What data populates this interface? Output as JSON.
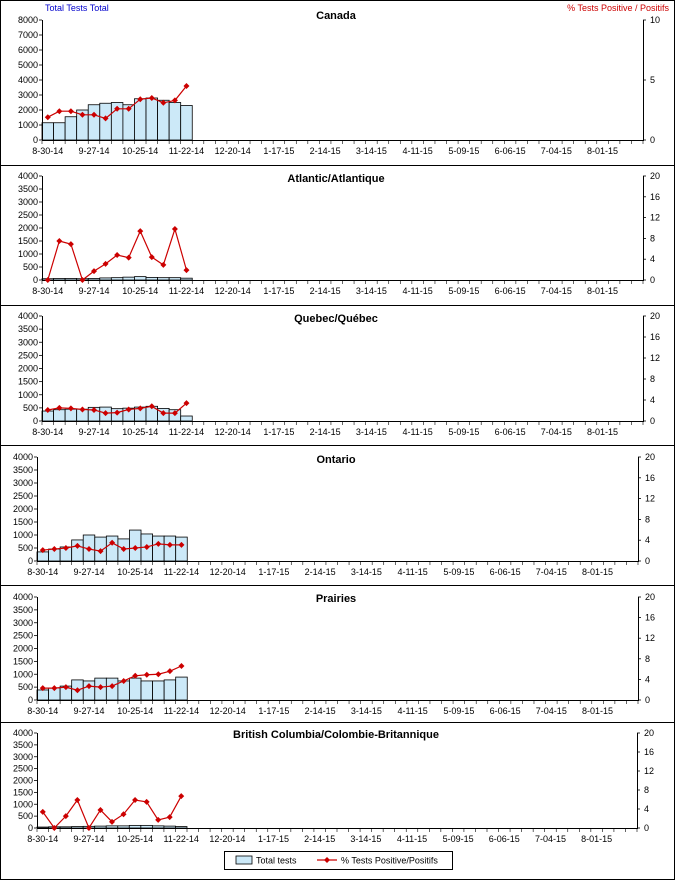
{
  "header": {
    "left_axis_title": "Total Tests Total",
    "right_axis_title": "% Tests Positive / Positifs"
  },
  "legend": {
    "position": "bottom-center",
    "entries": [
      {
        "label": "Total tests",
        "marker": "bar"
      },
      {
        "label": "% Tests Positive/Positifs",
        "marker": "line-diamond"
      }
    ]
  },
  "colors": {
    "bar_fill": "#cce9f8",
    "bar_stroke": "#000000",
    "line": "#cc0000",
    "left_axis_title": "#0000cc",
    "right_axis_title": "#cc0000"
  },
  "chart_data": [
    {
      "type": "bar+line",
      "title": "Canada",
      "grid": false,
      "xlim": [
        "8-30-14",
        "8-22-15"
      ],
      "x_tick_labels": [
        "8-30-14",
        "9-27-14",
        "10-25-14",
        "11-22-14",
        "12-20-14",
        "1-17-15",
        "2-14-15",
        "3-14-15",
        "4-11-15",
        "5-09-15",
        "6-06-15",
        "7-04-15",
        "8-01-15"
      ],
      "x": [
        "8-30-14",
        "9-06-14",
        "9-13-14",
        "9-20-14",
        "9-27-14",
        "10-04-14",
        "10-11-14",
        "10-18-14",
        "10-25-14",
        "11-01-14",
        "11-08-14",
        "11-15-14",
        "11-22-14"
      ],
      "y_left": {
        "ylim": [
          0,
          8000
        ],
        "ticks": [
          0,
          1000,
          2000,
          3000,
          4000,
          5000,
          6000,
          7000,
          8000
        ]
      },
      "y_right": {
        "ylim": [
          0,
          10
        ],
        "ticks": [
          0,
          5,
          10
        ]
      },
      "series": [
        {
          "name": "Total tests",
          "type": "bar",
          "axis": "left",
          "values": [
            1150,
            1150,
            1550,
            2000,
            2350,
            2450,
            2500,
            2350,
            2750,
            2800,
            2650,
            2500,
            2300
          ]
        },
        {
          "name": "% Tests Positive/Positifs",
          "type": "line",
          "axis": "right",
          "values": [
            1.9,
            2.4,
            2.4,
            2.1,
            2.1,
            1.8,
            2.6,
            2.6,
            3.4,
            3.5,
            3.1,
            3.3,
            4.5
          ]
        }
      ]
    },
    {
      "type": "bar+line",
      "title": "Atlantic/Atlantique",
      "grid": false,
      "xlim": [
        "8-30-14",
        "8-22-15"
      ],
      "x_tick_labels": [
        "8-30-14",
        "9-27-14",
        "10-25-14",
        "11-22-14",
        "12-20-14",
        "1-17-15",
        "2-14-15",
        "3-14-15",
        "4-11-15",
        "5-09-15",
        "6-06-15",
        "7-04-15",
        "8-01-15"
      ],
      "x": [
        "8-30-14",
        "9-06-14",
        "9-13-14",
        "9-20-14",
        "9-27-14",
        "10-04-14",
        "10-11-14",
        "10-18-14",
        "10-25-14",
        "11-01-14",
        "11-08-14",
        "11-15-14",
        "11-22-14"
      ],
      "y_left": {
        "ylim": [
          0,
          4000
        ],
        "ticks": [
          0,
          500,
          1000,
          1500,
          2000,
          2500,
          3000,
          3500,
          4000
        ]
      },
      "y_right": {
        "ylim": [
          0,
          20
        ],
        "ticks": [
          0,
          4,
          8,
          12,
          16,
          20
        ]
      },
      "series": [
        {
          "name": "Total tests",
          "type": "bar",
          "axis": "left",
          "values": [
            50,
            60,
            60,
            50,
            60,
            80,
            90,
            110,
            130,
            100,
            90,
            90,
            70
          ]
        },
        {
          "name": "% Tests Positive/Positifs",
          "type": "line",
          "axis": "right",
          "values": [
            0,
            7.5,
            6.9,
            0,
            1.7,
            3.1,
            4.8,
            4.3,
            9.4,
            4.4,
            2.9,
            9.8,
            1.9
          ]
        }
      ]
    },
    {
      "type": "bar+line",
      "title": "Quebec/Québec",
      "grid": false,
      "xlim": [
        "8-30-14",
        "8-22-15"
      ],
      "x_tick_labels": [
        "8-30-14",
        "9-27-14",
        "10-25-14",
        "11-22-14",
        "12-20-14",
        "1-17-15",
        "2-14-15",
        "3-14-15",
        "4-11-15",
        "5-09-15",
        "6-06-15",
        "7-04-15",
        "8-01-15"
      ],
      "x": [
        "8-30-14",
        "9-06-14",
        "9-13-14",
        "9-20-14",
        "9-27-14",
        "10-04-14",
        "10-11-14",
        "10-18-14",
        "10-25-14",
        "11-01-14",
        "11-08-14",
        "11-15-14",
        "11-22-14"
      ],
      "y_left": {
        "ylim": [
          0,
          4000
        ],
        "ticks": [
          0,
          500,
          1000,
          1500,
          2000,
          2500,
          3000,
          3500,
          4000
        ]
      },
      "y_right": {
        "ylim": [
          0,
          20
        ],
        "ticks": [
          0,
          4,
          8,
          12,
          16,
          20
        ]
      },
      "series": [
        {
          "name": "Total tests",
          "type": "bar",
          "axis": "left",
          "values": [
            380,
            430,
            450,
            450,
            520,
            530,
            470,
            490,
            530,
            560,
            480,
            430,
            190
          ]
        },
        {
          "name": "% Tests Positive/Positifs",
          "type": "line",
          "axis": "right",
          "values": [
            2.1,
            2.5,
            2.4,
            2.2,
            2.1,
            1.5,
            1.6,
            2.2,
            2.4,
            2.8,
            1.5,
            1.5,
            3.4
          ]
        }
      ]
    },
    {
      "type": "bar+line",
      "title": "Ontario",
      "grid": false,
      "xlim": [
        "8-30-14",
        "8-22-15"
      ],
      "x_tick_labels": [
        "8-30-14",
        "9-27-14",
        "10-25-14",
        "11-22-14",
        "12-20-14",
        "1-17-15",
        "2-14-15",
        "3-14-15",
        "4-11-15",
        "5-09-15",
        "6-06-15",
        "7-04-15",
        "8-01-15"
      ],
      "x": [
        "8-30-14",
        "9-06-14",
        "9-13-14",
        "9-20-14",
        "9-27-14",
        "10-04-14",
        "10-11-14",
        "10-18-14",
        "10-25-14",
        "11-01-14",
        "11-08-14",
        "11-15-14",
        "11-22-14"
      ],
      "y_left": {
        "ylim": [
          0,
          4000
        ],
        "ticks": [
          0,
          500,
          1000,
          1500,
          2000,
          2500,
          3000,
          3500,
          4000
        ]
      },
      "y_right": {
        "ylim": [
          0,
          20
        ],
        "ticks": [
          0,
          4,
          8,
          12,
          16,
          20
        ]
      },
      "series": [
        {
          "name": "Total tests",
          "type": "bar",
          "axis": "left",
          "values": [
            350,
            460,
            540,
            810,
            1000,
            920,
            960,
            850,
            1190,
            1040,
            960,
            960,
            920
          ]
        },
        {
          "name": "% Tests Positive/Positifs",
          "type": "line",
          "axis": "right",
          "values": [
            2.1,
            2.3,
            2.5,
            2.9,
            2.3,
            1.9,
            3.5,
            2.3,
            2.5,
            2.7,
            3.3,
            3.1,
            3.1
          ]
        }
      ]
    },
    {
      "type": "bar+line",
      "title": "Prairies",
      "grid": false,
      "xlim": [
        "8-30-14",
        "8-22-15"
      ],
      "x_tick_labels": [
        "8-30-14",
        "9-27-14",
        "10-25-14",
        "11-22-14",
        "12-20-14",
        "1-17-15",
        "2-14-15",
        "3-14-15",
        "4-11-15",
        "5-09-15",
        "6-06-15",
        "7-04-15",
        "8-01-15"
      ],
      "x": [
        "8-30-14",
        "9-06-14",
        "9-13-14",
        "9-20-14",
        "9-27-14",
        "10-04-14",
        "10-11-14",
        "10-18-14",
        "10-25-14",
        "11-01-14",
        "11-08-14",
        "11-15-14",
        "11-22-14"
      ],
      "y_left": {
        "ylim": [
          0,
          4000
        ],
        "ticks": [
          0,
          500,
          1000,
          1500,
          2000,
          2500,
          3000,
          3500,
          4000
        ]
      },
      "y_right": {
        "ylim": [
          0,
          20
        ],
        "ticks": [
          0,
          4,
          8,
          12,
          16,
          20
        ]
      },
      "series": [
        {
          "name": "Total tests",
          "type": "bar",
          "axis": "left",
          "values": [
            390,
            470,
            540,
            780,
            740,
            850,
            850,
            740,
            850,
            740,
            740,
            780,
            890
          ]
        },
        {
          "name": "% Tests Positive/Positifs",
          "type": "line",
          "axis": "right",
          "values": [
            2.3,
            2.3,
            2.5,
            1.9,
            2.7,
            2.5,
            2.7,
            3.7,
            4.7,
            4.9,
            5.0,
            5.6,
            6.6
          ]
        }
      ]
    },
    {
      "type": "bar+line",
      "title": "British Columbia/Colombie-Britannique",
      "grid": false,
      "xlim": [
        "8-30-14",
        "8-22-15"
      ],
      "x_tick_labels": [
        "8-30-14",
        "9-27-14",
        "10-25-14",
        "11-22-14",
        "12-20-14",
        "1-17-15",
        "2-14-15",
        "3-14-15",
        "4-11-15",
        "5-09-15",
        "6-06-15",
        "7-04-15",
        "8-01-15"
      ],
      "x": [
        "8-30-14",
        "9-06-14",
        "9-13-14",
        "9-20-14",
        "9-27-14",
        "10-04-14",
        "10-11-14",
        "10-18-14",
        "10-25-14",
        "11-01-14",
        "11-08-14",
        "11-15-14",
        "11-22-14"
      ],
      "y_left": {
        "ylim": [
          0,
          4000
        ],
        "ticks": [
          0,
          500,
          1000,
          1500,
          2000,
          2500,
          3000,
          3500,
          4000
        ]
      },
      "y_right": {
        "ylim": [
          0,
          20
        ],
        "ticks": [
          0,
          4,
          8,
          12,
          16,
          20
        ]
      },
      "series": [
        {
          "name": "Total tests",
          "type": "bar",
          "axis": "left",
          "values": [
            40,
            50,
            50,
            60,
            70,
            80,
            90,
            90,
            110,
            110,
            90,
            80,
            60
          ]
        },
        {
          "name": "% Tests Positive/Positifs",
          "type": "line",
          "axis": "right",
          "values": [
            3.4,
            0,
            2.5,
            5.9,
            0,
            3.8,
            1.3,
            2.9,
            5.9,
            5.5,
            1.7,
            2.3,
            6.7
          ]
        }
      ]
    }
  ]
}
